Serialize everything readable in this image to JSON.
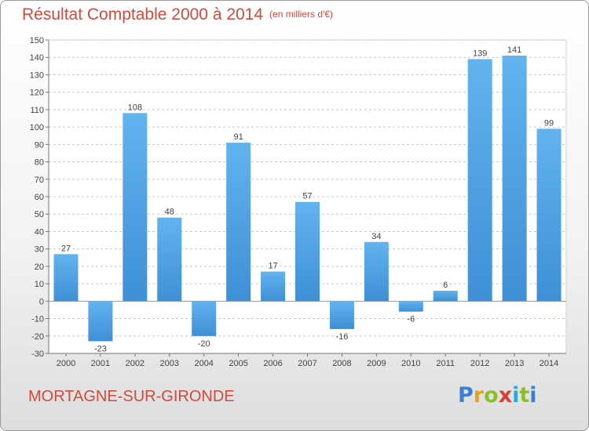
{
  "header": {
    "title": "Résultat Comptable 2000 à 2014",
    "subtitle": "(en milliers d'€)"
  },
  "footer": {
    "location": "MORTAGNE-SUR-GIRONDE",
    "logo_text": "Proxiti"
  },
  "colors": {
    "bar": "#3f8fd6",
    "bar_light": "#62b3ee",
    "title": "#d14a3a",
    "grid": "#c8c8c8"
  },
  "chart_data": {
    "type": "bar",
    "title": "Résultat Comptable 2000 à 2014",
    "subtitle": "(en milliers d'€)",
    "xlabel": "",
    "ylabel": "",
    "categories": [
      "2000",
      "2001",
      "2002",
      "2003",
      "2004",
      "2005",
      "2006",
      "2007",
      "2008",
      "2009",
      "2010",
      "2011",
      "2012",
      "2013",
      "2014"
    ],
    "values": [
      27,
      -23,
      108,
      48,
      -20,
      91,
      17,
      57,
      -16,
      34,
      -6,
      6,
      139,
      141,
      99
    ],
    "data_labels": [
      "27",
      "-23",
      "108",
      "48",
      "-20",
      "91",
      "17",
      "57",
      "-16",
      "34",
      "-6",
      "6",
      "139",
      "141",
      "99"
    ],
    "ylim": [
      -30,
      150
    ],
    "yticks": [
      -30,
      -20,
      -10,
      0,
      10,
      20,
      30,
      40,
      50,
      60,
      70,
      80,
      90,
      100,
      110,
      120,
      130,
      140,
      150
    ],
    "grid": "horizontal dashed",
    "legend": "none"
  }
}
